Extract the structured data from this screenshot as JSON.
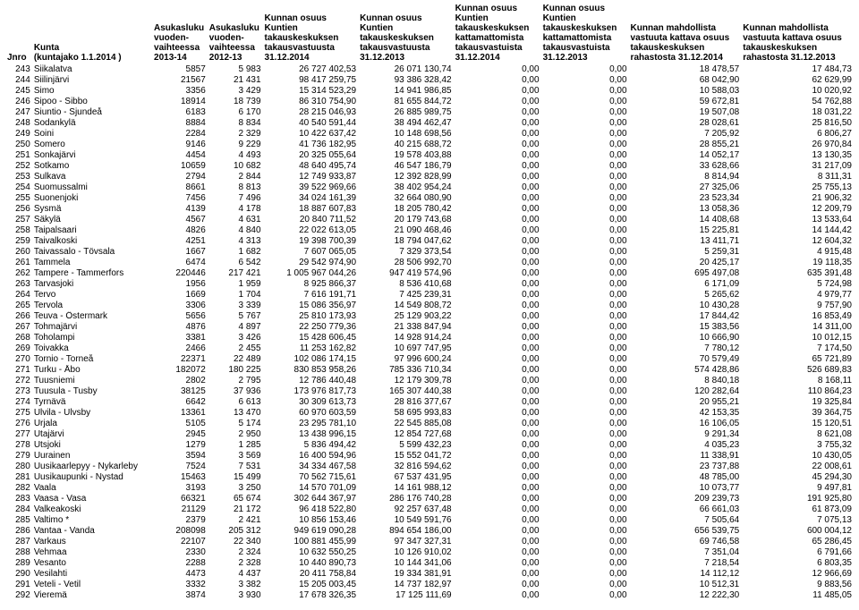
{
  "columns": [
    {
      "key": "jnro",
      "label": "Jnro",
      "align": "right",
      "header_align": "left"
    },
    {
      "key": "kunta",
      "label": "Kunta\n(kuntajako 1.1.2014 )",
      "align": "left",
      "header_align": "left"
    },
    {
      "key": "asuk14",
      "label": "Asukasluku\nvuoden-\nvaihteessa\n2013-14",
      "align": "right",
      "header_align": "left"
    },
    {
      "key": "asuk13",
      "label": "Asukasluku\nvuoden-\nvaihteessa\n2012-13",
      "align": "right",
      "header_align": "left"
    },
    {
      "key": "osuus14",
      "label": "Kunnan osuus Kuntien\ntakauskeskuksen\ntakausvastuusta\n31.12.2014",
      "align": "right",
      "header_align": "left"
    },
    {
      "key": "osuus13",
      "label": "Kunnan osuus Kuntien\ntakauskeskuksen\ntakausvastuusta\n31.12.2013",
      "align": "right",
      "header_align": "left"
    },
    {
      "key": "katt14",
      "label": "Kunnan osuus\nKuntien\ntakauskeskuksen\nkattamattomista\ntakausvastuista\n31.12.2014",
      "align": "right",
      "header_align": "left"
    },
    {
      "key": "katt13",
      "label": "Kunnan osuus\nKuntien\ntakauskeskuksen\nkattamattomista\ntakausvastuista\n31.12.2013",
      "align": "right",
      "header_align": "left"
    },
    {
      "key": "rah14",
      "label": "Kunnan mahdollista\nvastuuta kattava osuus\ntakauskeskuksen\nrahastosta 31.12.2014",
      "align": "right",
      "header_align": "left"
    },
    {
      "key": "rah13",
      "label": "Kunnan mahdollista\nvastuuta kattava osuus\ntakauskeskuksen\nrahastosta 31.12.2013",
      "align": "right",
      "header_align": "left"
    }
  ],
  "rows": [
    {
      "jnro": "243",
      "kunta": "Siikalatva",
      "asuk14": "5857",
      "asuk13": "5 983",
      "osuus14": "26 727 402,53",
      "osuus13": "26 071 130,74",
      "katt14": "0,00",
      "katt13": "0,00",
      "rah14": "18 478,57",
      "rah13": "17 484,73"
    },
    {
      "jnro": "244",
      "kunta": "Siilinjärvi",
      "asuk14": "21567",
      "asuk13": "21 431",
      "osuus14": "98 417 259,75",
      "osuus13": "93 386 328,42",
      "katt14": "0,00",
      "katt13": "0,00",
      "rah14": "68 042,90",
      "rah13": "62 629,99"
    },
    {
      "jnro": "245",
      "kunta": "Simo",
      "asuk14": "3356",
      "asuk13": "3 429",
      "osuus14": "15 314 523,29",
      "osuus13": "14 941 986,85",
      "katt14": "0,00",
      "katt13": "0,00",
      "rah14": "10 588,03",
      "rah13": "10 020,92"
    },
    {
      "jnro": "246",
      "kunta": "Sipoo - Sibbo",
      "asuk14": "18914",
      "asuk13": "18 739",
      "osuus14": "86 310 754,90",
      "osuus13": "81 655 844,72",
      "katt14": "0,00",
      "katt13": "0,00",
      "rah14": "59 672,81",
      "rah13": "54 762,88"
    },
    {
      "jnro": "247",
      "kunta": "Siuntio - Sjundeå",
      "asuk14": "6183",
      "asuk13": "6 170",
      "osuus14": "28 215 046,93",
      "osuus13": "26 885 989,75",
      "katt14": "0,00",
      "katt13": "0,00",
      "rah14": "19 507,08",
      "rah13": "18 031,22"
    },
    {
      "jnro": "248",
      "kunta": "Sodankylä",
      "asuk14": "8884",
      "asuk13": "8 834",
      "osuus14": "40 540 591,44",
      "osuus13": "38 494 462,47",
      "katt14": "0,00",
      "katt13": "0,00",
      "rah14": "28 028,61",
      "rah13": "25 816,50"
    },
    {
      "jnro": "249",
      "kunta": "Soini",
      "asuk14": "2284",
      "asuk13": "2 329",
      "osuus14": "10 422 637,42",
      "osuus13": "10 148 698,56",
      "katt14": "0,00",
      "katt13": "0,00",
      "rah14": "7 205,92",
      "rah13": "6 806,27"
    },
    {
      "jnro": "250",
      "kunta": "Somero",
      "asuk14": "9146",
      "asuk13": "9 229",
      "osuus14": "41 736 182,95",
      "osuus13": "40 215 688,72",
      "katt14": "0,00",
      "katt13": "0,00",
      "rah14": "28 855,21",
      "rah13": "26 970,84"
    },
    {
      "jnro": "251",
      "kunta": "Sonkajärvi",
      "asuk14": "4454",
      "asuk13": "4 493",
      "osuus14": "20 325 055,64",
      "osuus13": "19 578 403,88",
      "katt14": "0,00",
      "katt13": "0,00",
      "rah14": "14 052,17",
      "rah13": "13 130,35"
    },
    {
      "jnro": "252",
      "kunta": "Sotkamo",
      "asuk14": "10659",
      "asuk13": "10 682",
      "osuus14": "48 640 495,74",
      "osuus13": "46 547 186,79",
      "katt14": "0,00",
      "katt13": "0,00",
      "rah14": "33 628,66",
      "rah13": "31 217,09"
    },
    {
      "jnro": "253",
      "kunta": "Sulkava",
      "asuk14": "2794",
      "asuk13": "2 844",
      "osuus14": "12 749 933,87",
      "osuus13": "12 392 828,99",
      "katt14": "0,00",
      "katt13": "0,00",
      "rah14": "8 814,94",
      "rah13": "8 311,31"
    },
    {
      "jnro": "254",
      "kunta": "Suomussalmi",
      "asuk14": "8661",
      "asuk13": "8 813",
      "osuus14": "39 522 969,66",
      "osuus13": "38 402 954,24",
      "katt14": "0,00",
      "katt13": "0,00",
      "rah14": "27 325,06",
      "rah13": "25 755,13"
    },
    {
      "jnro": "255",
      "kunta": "Suonenjoki",
      "asuk14": "7456",
      "asuk13": "7 496",
      "osuus14": "34 024 161,39",
      "osuus13": "32 664 080,90",
      "katt14": "0,00",
      "katt13": "0,00",
      "rah14": "23 523,34",
      "rah13": "21 906,32"
    },
    {
      "jnro": "256",
      "kunta": "Sysmä",
      "asuk14": "4139",
      "asuk13": "4 178",
      "osuus14": "18 887 607,83",
      "osuus13": "18 205 780,42",
      "katt14": "0,00",
      "katt13": "0,00",
      "rah14": "13 058,36",
      "rah13": "12 209,79"
    },
    {
      "jnro": "257",
      "kunta": "Säkylä",
      "asuk14": "4567",
      "asuk13": "4 631",
      "osuus14": "20 840 711,52",
      "osuus13": "20 179 743,68",
      "katt14": "0,00",
      "katt13": "0,00",
      "rah14": "14 408,68",
      "rah13": "13 533,64"
    },
    {
      "jnro": "258",
      "kunta": "Taipalsaari",
      "asuk14": "4826",
      "asuk13": "4 840",
      "osuus14": "22 022 613,05",
      "osuus13": "21 090 468,46",
      "katt14": "0,00",
      "katt13": "0,00",
      "rah14": "15 225,81",
      "rah13": "14 144,42"
    },
    {
      "jnro": "259",
      "kunta": "Taivalkoski",
      "asuk14": "4251",
      "asuk13": "4 313",
      "osuus14": "19 398 700,39",
      "osuus13": "18 794 047,62",
      "katt14": "0,00",
      "katt13": "0,00",
      "rah14": "13 411,71",
      "rah13": "12 604,32"
    },
    {
      "jnro": "260",
      "kunta": "Taivassalo - Tövsala",
      "asuk14": "1667",
      "asuk13": "1 682",
      "osuus14": "7 607 065,05",
      "osuus13": "7 329 373,54",
      "katt14": "0,00",
      "katt13": "0,00",
      "rah14": "5 259,31",
      "rah13": "4 915,48"
    },
    {
      "jnro": "261",
      "kunta": "Tammela",
      "asuk14": "6474",
      "asuk13": "6 542",
      "osuus14": "29 542 974,90",
      "osuus13": "28 506 992,70",
      "katt14": "0,00",
      "katt13": "0,00",
      "rah14": "20 425,17",
      "rah13": "19 118,35"
    },
    {
      "jnro": "262",
      "kunta": "Tampere - Tammerfors",
      "asuk14": "220446",
      "asuk13": "217 421",
      "osuus14": "1 005 967 044,26",
      "osuus13": "947 419 574,96",
      "katt14": "0,00",
      "katt13": "0,00",
      "rah14": "695 497,08",
      "rah13": "635 391,48"
    },
    {
      "jnro": "263",
      "kunta": "Tarvasjoki",
      "asuk14": "1956",
      "asuk13": "1 959",
      "osuus14": "8 925 866,37",
      "osuus13": "8 536 410,68",
      "katt14": "0,00",
      "katt13": "0,00",
      "rah14": "6 171,09",
      "rah13": "5 724,98"
    },
    {
      "jnro": "264",
      "kunta": "Tervo",
      "asuk14": "1669",
      "asuk13": "1 704",
      "osuus14": "7 616 191,71",
      "osuus13": "7 425 239,31",
      "katt14": "0,00",
      "katt13": "0,00",
      "rah14": "5 265,62",
      "rah13": "4 979,77"
    },
    {
      "jnro": "265",
      "kunta": "Tervola",
      "asuk14": "3306",
      "asuk13": "3 339",
      "osuus14": "15 086 356,97",
      "osuus13": "14 549 808,72",
      "katt14": "0,00",
      "katt13": "0,00",
      "rah14": "10 430,28",
      "rah13": "9 757,90"
    },
    {
      "jnro": "266",
      "kunta": "Teuva - Östermark",
      "asuk14": "5656",
      "asuk13": "5 767",
      "osuus14": "25 810 173,93",
      "osuus13": "25 129 903,22",
      "katt14": "0,00",
      "katt13": "0,00",
      "rah14": "17 844,42",
      "rah13": "16 853,49"
    },
    {
      "jnro": "267",
      "kunta": "Tohmajärvi",
      "asuk14": "4876",
      "asuk13": "4 897",
      "osuus14": "22 250 779,36",
      "osuus13": "21 338 847,94",
      "katt14": "0,00",
      "katt13": "0,00",
      "rah14": "15 383,56",
      "rah13": "14 311,00"
    },
    {
      "jnro": "268",
      "kunta": "Toholampi",
      "asuk14": "3381",
      "asuk13": "3 426",
      "osuus14": "15 428 606,45",
      "osuus13": "14 928 914,24",
      "katt14": "0,00",
      "katt13": "0,00",
      "rah14": "10 666,90",
      "rah13": "10 012,15"
    },
    {
      "jnro": "269",
      "kunta": "Toivakka",
      "asuk14": "2466",
      "asuk13": "2 455",
      "osuus14": "11 253 162,82",
      "osuus13": "10 697 747,95",
      "katt14": "0,00",
      "katt13": "0,00",
      "rah14": "7 780,12",
      "rah13": "7 174,50"
    },
    {
      "jnro": "270",
      "kunta": "Tornio - Torneå",
      "asuk14": "22371",
      "asuk13": "22 489",
      "osuus14": "102 086 174,15",
      "osuus13": "97 996 600,24",
      "katt14": "0,00",
      "katt13": "0,00",
      "rah14": "70 579,49",
      "rah13": "65 721,89"
    },
    {
      "jnro": "271",
      "kunta": "Turku - Åbo",
      "asuk14": "182072",
      "asuk13": "180 225",
      "osuus14": "830 853 958,26",
      "osuus13": "785 336 710,34",
      "katt14": "0,00",
      "katt13": "0,00",
      "rah14": "574 428,86",
      "rah13": "526 689,83"
    },
    {
      "jnro": "272",
      "kunta": "Tuusniemi",
      "asuk14": "2802",
      "asuk13": "2 795",
      "osuus14": "12 786 440,48",
      "osuus13": "12 179 309,78",
      "katt14": "0,00",
      "katt13": "0,00",
      "rah14": "8 840,18",
      "rah13": "8 168,11"
    },
    {
      "jnro": "273",
      "kunta": "Tuusula - Tusby",
      "asuk14": "38125",
      "asuk13": "37 936",
      "osuus14": "173 976 817,73",
      "osuus13": "165 307 440,38",
      "katt14": "0,00",
      "katt13": "0,00",
      "rah14": "120 282,64",
      "rah13": "110 864,23"
    },
    {
      "jnro": "274",
      "kunta": "Tyrnävä",
      "asuk14": "6642",
      "asuk13": "6 613",
      "osuus14": "30 309 613,73",
      "osuus13": "28 816 377,67",
      "katt14": "0,00",
      "katt13": "0,00",
      "rah14": "20 955,21",
      "rah13": "19 325,84"
    },
    {
      "jnro": "275",
      "kunta": "Ulvila - Ulvsby",
      "asuk14": "13361",
      "asuk13": "13 470",
      "osuus14": "60 970 603,59",
      "osuus13": "58 695 993,83",
      "katt14": "0,00",
      "katt13": "0,00",
      "rah14": "42 153,35",
      "rah13": "39 364,75"
    },
    {
      "jnro": "276",
      "kunta": "Urjala",
      "asuk14": "5105",
      "asuk13": "5 174",
      "osuus14": "23 295 781,10",
      "osuus13": "22 545 885,08",
      "katt14": "0,00",
      "katt13": "0,00",
      "rah14": "16 106,05",
      "rah13": "15 120,51"
    },
    {
      "jnro": "277",
      "kunta": "Utajärvi",
      "asuk14": "2945",
      "asuk13": "2 950",
      "osuus14": "13 438 996,15",
      "osuus13": "12 854 727,68",
      "katt14": "0,00",
      "katt13": "0,00",
      "rah14": "9 291,34",
      "rah13": "8 621,08"
    },
    {
      "jnro": "278",
      "kunta": "Utsjoki",
      "asuk14": "1279",
      "asuk13": "1 285",
      "osuus14": "5 836 494,42",
      "osuus13": "5 599 432,23",
      "katt14": "0,00",
      "katt13": "0,00",
      "rah14": "4 035,23",
      "rah13": "3 755,32"
    },
    {
      "jnro": "279",
      "kunta": "Uurainen",
      "asuk14": "3594",
      "asuk13": "3 569",
      "osuus14": "16 400 594,96",
      "osuus13": "15 552 041,72",
      "katt14": "0,00",
      "katt13": "0,00",
      "rah14": "11 338,91",
      "rah13": "10 430,05"
    },
    {
      "jnro": "280",
      "kunta": "Uusikaarlepyy - Nykarleby",
      "asuk14": "7524",
      "asuk13": "7 531",
      "osuus14": "34 334 467,58",
      "osuus13": "32 816 594,62",
      "katt14": "0,00",
      "katt13": "0,00",
      "rah14": "23 737,88",
      "rah13": "22 008,61"
    },
    {
      "jnro": "281",
      "kunta": "Uusikaupunki - Nystad",
      "asuk14": "15463",
      "asuk13": "15 499",
      "osuus14": "70 562 715,61",
      "osuus13": "67 537 431,95",
      "katt14": "0,00",
      "katt13": "0,00",
      "rah14": "48 785,00",
      "rah13": "45 294,30"
    },
    {
      "jnro": "282",
      "kunta": "Vaala",
      "asuk14": "3193",
      "asuk13": "3 250",
      "osuus14": "14 570 701,09",
      "osuus13": "14 161 988,12",
      "katt14": "0,00",
      "katt13": "0,00",
      "rah14": "10 073,77",
      "rah13": "9 497,81"
    },
    {
      "jnro": "283",
      "kunta": "Vaasa - Vasa",
      "asuk14": "66321",
      "asuk13": "65 674",
      "osuus14": "302 644 367,97",
      "osuus13": "286 176 740,28",
      "katt14": "0,00",
      "katt13": "0,00",
      "rah14": "209 239,73",
      "rah13": "191 925,80"
    },
    {
      "jnro": "284",
      "kunta": "Valkeakoski",
      "asuk14": "21129",
      "asuk13": "21 172",
      "osuus14": "96 418 522,80",
      "osuus13": "92 257 637,48",
      "katt14": "0,00",
      "katt13": "0,00",
      "rah14": "66 661,03",
      "rah13": "61 873,09"
    },
    {
      "jnro": "285",
      "kunta": "Valtimo *",
      "asuk14": "2379",
      "asuk13": "2 421",
      "osuus14": "10 856 153,46",
      "osuus13": "10 549 591,76",
      "katt14": "0,00",
      "katt13": "0,00",
      "rah14": "7 505,64",
      "rah13": "7 075,13"
    },
    {
      "jnro": "286",
      "kunta": "Vantaa - Vanda",
      "asuk14": "208098",
      "asuk13": "205 312",
      "osuus14": "949 619 090,28",
      "osuus13": "894 654 186,00",
      "katt14": "0,00",
      "katt13": "0,00",
      "rah14": "656 539,75",
      "rah13": "600 004,12"
    },
    {
      "jnro": "287",
      "kunta": "Varkaus",
      "asuk14": "22107",
      "asuk13": "22 340",
      "osuus14": "100 881 455,99",
      "osuus13": "97 347 327,31",
      "katt14": "0,00",
      "katt13": "0,00",
      "rah14": "69 746,58",
      "rah13": "65 286,45"
    },
    {
      "jnro": "288",
      "kunta": "Vehmaa",
      "asuk14": "2330",
      "asuk13": "2 324",
      "osuus14": "10 632 550,25",
      "osuus13": "10 126 910,02",
      "katt14": "0,00",
      "katt13": "0,00",
      "rah14": "7 351,04",
      "rah13": "6 791,66"
    },
    {
      "jnro": "289",
      "kunta": "Vesanto",
      "asuk14": "2288",
      "asuk13": "2 328",
      "osuus14": "10 440 890,73",
      "osuus13": "10 144 341,06",
      "katt14": "0,00",
      "katt13": "0,00",
      "rah14": "7 218,54",
      "rah13": "6 803,35"
    },
    {
      "jnro": "290",
      "kunta": "Vesilahti",
      "asuk14": "4473",
      "asuk13": "4 437",
      "osuus14": "20 411 758,84",
      "osuus13": "19 334 381,91",
      "katt14": "0,00",
      "katt13": "0,00",
      "rah14": "14 112,12",
      "rah13": "12 966,69"
    },
    {
      "jnro": "291",
      "kunta": "Veteli - Vetil",
      "asuk14": "3332",
      "asuk13": "3 382",
      "osuus14": "15 205 003,45",
      "osuus13": "14 737 182,97",
      "katt14": "0,00",
      "katt13": "0,00",
      "rah14": "10 512,31",
      "rah13": "9 883,56"
    },
    {
      "jnro": "292",
      "kunta": "Vieremä",
      "asuk14": "3874",
      "asuk13": "3 930",
      "osuus14": "17 678 326,35",
      "osuus13": "17 125 111,69",
      "katt14": "0,00",
      "katt13": "0,00",
      "rah14": "12 222,30",
      "rah13": "11 485,05"
    }
  ]
}
